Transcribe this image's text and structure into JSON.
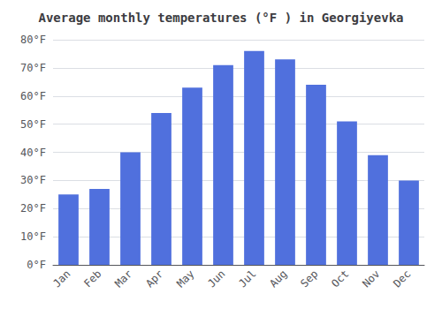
{
  "chart_data": {
    "type": "bar",
    "title": "Average monthly temperatures (°F ) in Georgiyevka",
    "categories": [
      "Jan",
      "Feb",
      "Mar",
      "Apr",
      "May",
      "Jun",
      "Jul",
      "Aug",
      "Sep",
      "Oct",
      "Nov",
      "Dec"
    ],
    "values": [
      25,
      27,
      40,
      54,
      63,
      71,
      76,
      73,
      64,
      51,
      39,
      30
    ],
    "ylim": [
      0,
      80
    ],
    "yticks": [
      {
        "value": 0,
        "label": "0°F"
      },
      {
        "value": 10,
        "label": "10°F"
      },
      {
        "value": 20,
        "label": "20°F"
      },
      {
        "value": 30,
        "label": "30°F"
      },
      {
        "value": 40,
        "label": "40°F"
      },
      {
        "value": 50,
        "label": "50°F"
      },
      {
        "value": 60,
        "label": "60°F"
      },
      {
        "value": 70,
        "label": "70°F"
      },
      {
        "value": 80,
        "label": "80°F"
      }
    ],
    "grid": true
  }
}
